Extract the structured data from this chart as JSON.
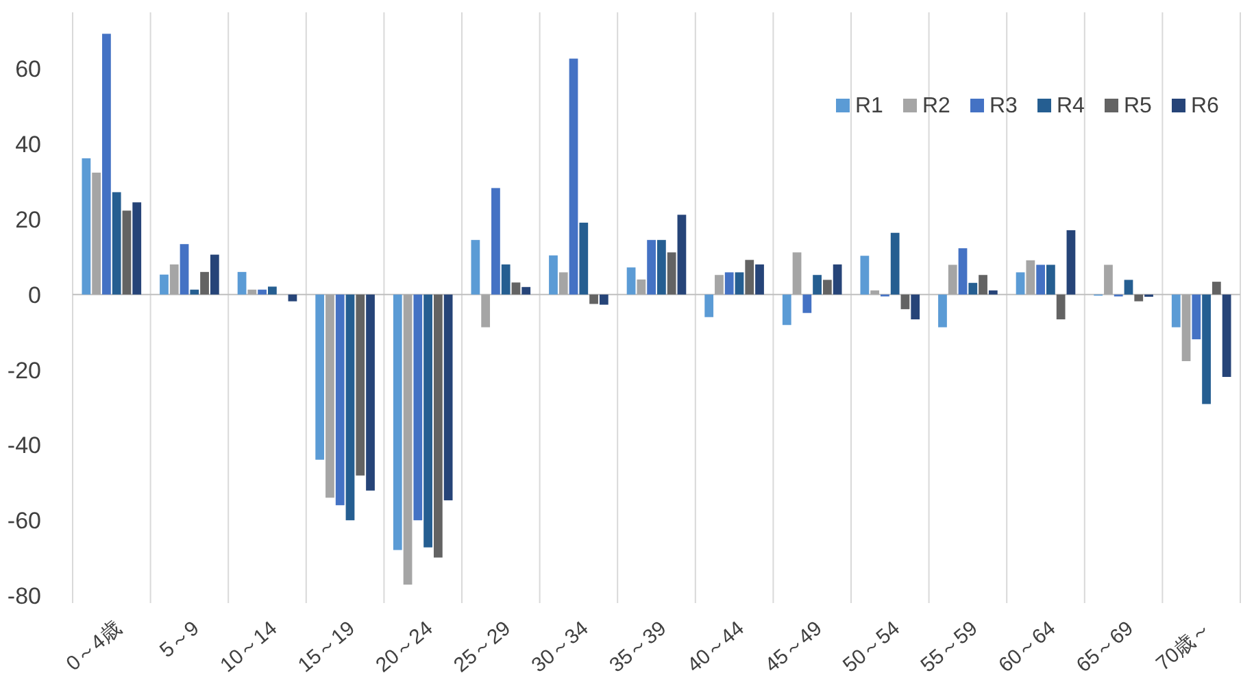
{
  "chart_data": {
    "type": "bar",
    "categories": [
      "0～4歳",
      "5～9",
      "10～14",
      "15～19",
      "20～24",
      "25～29",
      "30～34",
      "35～39",
      "40～44",
      "45～49",
      "50～54",
      "55～59",
      "60～64",
      "65～69",
      "70歳～"
    ],
    "series": [
      {
        "name": "R1",
        "color": "#5b9bd5",
        "values": [
          36.2,
          5.3,
          6.0,
          -43.9,
          -67.9,
          14.5,
          10.4,
          7.2,
          -6.0,
          -8.1,
          10.3,
          -8.7,
          5.9,
          -0.3,
          -8.7
        ]
      },
      {
        "name": "R2",
        "color": "#a5a5a5",
        "values": [
          32.4,
          8.0,
          1.3,
          -54.0,
          -77.1,
          -8.7,
          5.9,
          4.0,
          5.2,
          11.2,
          1.1,
          7.9,
          9.1,
          7.9,
          -17.7
        ]
      },
      {
        "name": "R3",
        "color": "#4472c4",
        "values": [
          69.3,
          13.4,
          1.3,
          -56.0,
          -60.0,
          28.3,
          62.7,
          14.5,
          5.9,
          -4.9,
          -0.5,
          12.3,
          7.9,
          -0.5,
          -11.9
        ]
      },
      {
        "name": "R4",
        "color": "#255e91",
        "values": [
          27.2,
          1.3,
          2.1,
          -60.0,
          -67.2,
          8.0,
          19.1,
          14.5,
          5.9,
          5.2,
          16.4,
          3.1,
          7.9,
          3.9,
          -29.1
        ]
      },
      {
        "name": "R5",
        "color": "#636363",
        "values": [
          22.3,
          6.0,
          0,
          -48.1,
          -69.9,
          3.2,
          -2.5,
          11.2,
          9.2,
          3.9,
          -3.9,
          5.2,
          -6.6,
          -1.8,
          3.4
        ]
      },
      {
        "name": "R6",
        "color": "#264478",
        "values": [
          24.5,
          10.6,
          -1.8,
          -52.1,
          -54.7,
          2.0,
          -2.7,
          21.2,
          8.0,
          8.0,
          -6.6,
          1.1,
          17.1,
          -0.6,
          -21.9
        ]
      }
    ],
    "ylim": [
      -82,
      75
    ],
    "yticks": [
      -80,
      -60,
      -40,
      -20,
      0,
      20,
      40,
      60
    ],
    "grid": "x",
    "legend": "top right"
  }
}
